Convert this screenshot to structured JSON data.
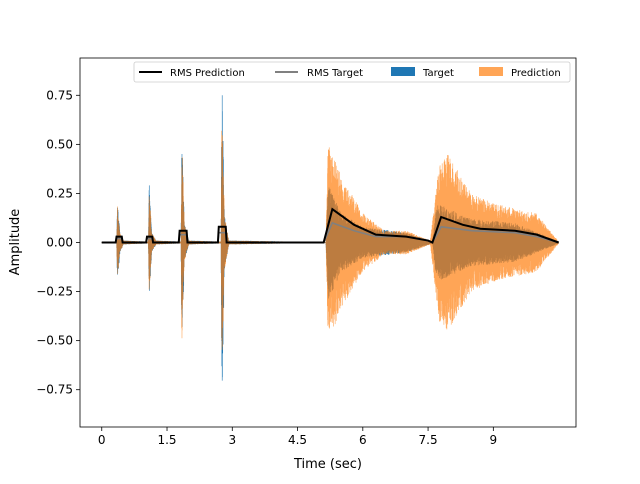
{
  "chart_data": {
    "type": "line",
    "title": "",
    "xlabel": "Time (sec)",
    "ylabel": "Amplitude",
    "xlim": [
      -0.5,
      10.9
    ],
    "ylim": [
      -0.94,
      0.94
    ],
    "xticks": [
      0,
      1.5,
      3,
      4.5,
      6,
      7.5,
      9
    ],
    "xtick_labels": [
      "0",
      "1.5",
      "3",
      "4.5",
      "6",
      "7.5",
      "9"
    ],
    "yticks": [
      -0.75,
      -0.5,
      -0.25,
      0.0,
      0.25,
      0.5,
      0.75
    ],
    "ytick_labels": [
      "−0.75",
      "−0.50",
      "−0.25",
      "0.00",
      "0.25",
      "0.50",
      "0.75"
    ],
    "grid": false,
    "legend": {
      "placement": "top-right",
      "entries": [
        "RMS Prediction",
        "RMS Target",
        "Target",
        "Prediction"
      ]
    },
    "colors": {
      "rms_prediction": "#000000",
      "rms_target": "#808080",
      "target": "#1f77b4",
      "prediction": "#ff7f0e"
    },
    "series": [
      {
        "name": "Target",
        "kind": "waveform",
        "envelope": [
          [
            0,
            0.002
          ],
          [
            0.34,
            0.002
          ],
          [
            0.36,
            0.22
          ],
          [
            0.42,
            0.05
          ],
          [
            0.5,
            0.01
          ],
          [
            1.07,
            0.005
          ],
          [
            1.09,
            0.3
          ],
          [
            1.15,
            0.05
          ],
          [
            1.25,
            0.01
          ],
          [
            1.82,
            0.005
          ],
          [
            1.84,
            0.57
          ],
          [
            1.9,
            0.1
          ],
          [
            2.0,
            0.01
          ],
          [
            2.74,
            0.005
          ],
          [
            2.76,
            0.85
          ],
          [
            2.82,
            0.15
          ],
          [
            2.92,
            0.01
          ],
          [
            5.15,
            0.002
          ],
          [
            5.2,
            0.3
          ],
          [
            5.5,
            0.15
          ],
          [
            6.0,
            0.08
          ],
          [
            7.0,
            0.05
          ],
          [
            7.6,
            0.005
          ],
          [
            7.7,
            0.2
          ],
          [
            8.5,
            0.12
          ],
          [
            9.5,
            0.1
          ],
          [
            10.5,
            0.005
          ]
        ]
      },
      {
        "name": "Prediction",
        "kind": "waveform",
        "envelope": [
          [
            0,
            0.002
          ],
          [
            0.34,
            0.002
          ],
          [
            0.36,
            0.19
          ],
          [
            0.42,
            0.05
          ],
          [
            0.5,
            0.01
          ],
          [
            1.07,
            0.005
          ],
          [
            1.09,
            0.29
          ],
          [
            1.15,
            0.05
          ],
          [
            1.25,
            0.01
          ],
          [
            1.82,
            0.005
          ],
          [
            1.84,
            0.55
          ],
          [
            1.9,
            0.1
          ],
          [
            2.0,
            0.01
          ],
          [
            2.74,
            0.005
          ],
          [
            2.76,
            0.72
          ],
          [
            2.82,
            0.15
          ],
          [
            2.92,
            0.01
          ],
          [
            5.15,
            0.002
          ],
          [
            5.2,
            0.5
          ],
          [
            5.6,
            0.3
          ],
          [
            6.0,
            0.15
          ],
          [
            6.5,
            0.06
          ],
          [
            7.0,
            0.06
          ],
          [
            7.55,
            0.01
          ],
          [
            7.75,
            0.4
          ],
          [
            7.95,
            0.45
          ],
          [
            8.5,
            0.25
          ],
          [
            9.0,
            0.2
          ],
          [
            10.0,
            0.15
          ],
          [
            10.5,
            0.005
          ]
        ]
      },
      {
        "name": "RMS Prediction",
        "kind": "line",
        "points": [
          [
            0,
            0
          ],
          [
            0.32,
            0
          ],
          [
            0.34,
            0.03
          ],
          [
            0.46,
            0.03
          ],
          [
            0.48,
            0
          ],
          [
            1.02,
            0
          ],
          [
            1.04,
            0.03
          ],
          [
            1.16,
            0.03
          ],
          [
            1.18,
            0
          ],
          [
            1.77,
            0
          ],
          [
            1.79,
            0.06
          ],
          [
            1.95,
            0.06
          ],
          [
            1.97,
            0
          ],
          [
            2.67,
            0
          ],
          [
            2.69,
            0.08
          ],
          [
            2.85,
            0.08
          ],
          [
            2.87,
            0
          ],
          [
            5.1,
            0
          ],
          [
            5.3,
            0.17
          ],
          [
            5.8,
            0.09
          ],
          [
            6.3,
            0.04
          ],
          [
            7.0,
            0.03
          ],
          [
            7.5,
            0.01
          ],
          [
            7.6,
            0
          ],
          [
            7.8,
            0.13
          ],
          [
            8.3,
            0.09
          ],
          [
            8.7,
            0.07
          ],
          [
            9.5,
            0.06
          ],
          [
            10.0,
            0.04
          ],
          [
            10.5,
            0
          ]
        ]
      },
      {
        "name": "RMS Target",
        "kind": "line",
        "points": [
          [
            0,
            0
          ],
          [
            0.32,
            0
          ],
          [
            0.34,
            0.02
          ],
          [
            0.46,
            0.02
          ],
          [
            0.48,
            0
          ],
          [
            1.02,
            0
          ],
          [
            1.04,
            0.02
          ],
          [
            1.16,
            0.02
          ],
          [
            1.18,
            0
          ],
          [
            1.77,
            0
          ],
          [
            1.79,
            0.04
          ],
          [
            1.95,
            0.04
          ],
          [
            1.97,
            0
          ],
          [
            2.67,
            0
          ],
          [
            2.69,
            0.05
          ],
          [
            2.85,
            0.05
          ],
          [
            2.87,
            0
          ],
          [
            5.1,
            0
          ],
          [
            5.3,
            0.1
          ],
          [
            5.8,
            0.06
          ],
          [
            6.3,
            0.03
          ],
          [
            7.0,
            0.03
          ],
          [
            7.5,
            0.01
          ],
          [
            7.6,
            0
          ],
          [
            7.8,
            0.08
          ],
          [
            8.5,
            0.06
          ],
          [
            9.5,
            0.05
          ],
          [
            10.0,
            0.03
          ],
          [
            10.5,
            0
          ]
        ]
      }
    ]
  }
}
